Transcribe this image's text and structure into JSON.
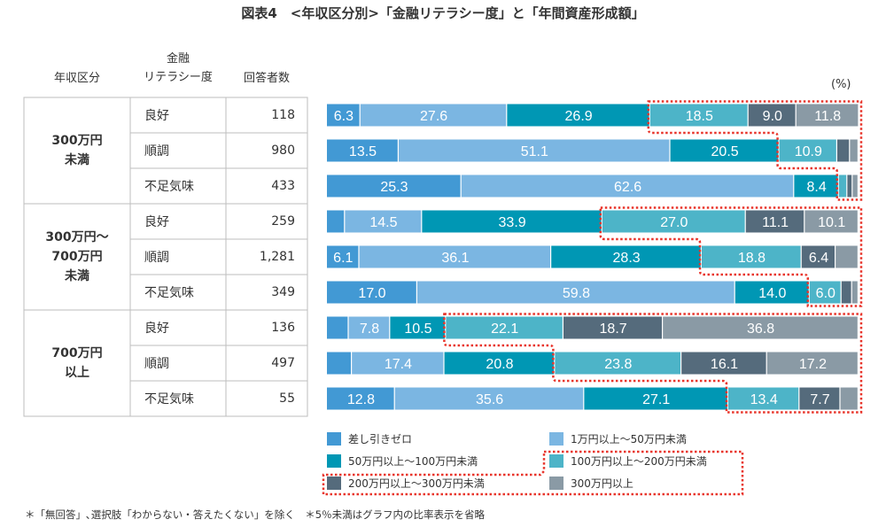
{
  "chart_data": {
    "type": "bar",
    "orientation": "horizontal",
    "stacked": true,
    "title": "図表4　<年収区分別>「金融リテラシー度」と「年間資産形成額」",
    "unit": "(%)",
    "xlim": [
      0,
      100
    ],
    "columns": {
      "group": "年収区分",
      "literacy": "金融\nリテラシー度",
      "count": "回答者数"
    },
    "groups": [
      {
        "label": "300万円\n未満",
        "rows": [
          0,
          1,
          2
        ]
      },
      {
        "label": "300万円〜\n700万円\n未満",
        "rows": [
          3,
          4,
          5
        ]
      },
      {
        "label": "700万円\n以上",
        "rows": [
          6,
          7,
          8
        ]
      }
    ],
    "rows": [
      {
        "literacy": "良好",
        "count": "118",
        "values": [
          6.3,
          27.6,
          26.9,
          18.5,
          9.0,
          11.8
        ]
      },
      {
        "literacy": "順調",
        "count": "980",
        "values": [
          13.5,
          51.1,
          20.5,
          10.9,
          2.4,
          1.6
        ]
      },
      {
        "literacy": "不足気味",
        "count": "433",
        "values": [
          25.3,
          62.6,
          8.4,
          1.6,
          1.0,
          1.1
        ]
      },
      {
        "literacy": "良好",
        "count": "259",
        "values": [
          3.4,
          14.5,
          33.9,
          27.0,
          11.1,
          10.1
        ]
      },
      {
        "literacy": "順調",
        "count": "1,281",
        "values": [
          6.1,
          36.1,
          28.3,
          18.8,
          6.4,
          4.3
        ]
      },
      {
        "literacy": "不足気味",
        "count": "349",
        "values": [
          17.0,
          59.8,
          14.0,
          6.0,
          2.0,
          1.2
        ]
      },
      {
        "literacy": "良好",
        "count": "136",
        "values": [
          4.1,
          7.8,
          10.5,
          22.1,
          18.7,
          36.8
        ]
      },
      {
        "literacy": "順調",
        "count": "497",
        "values": [
          4.7,
          17.4,
          20.8,
          23.8,
          16.1,
          17.2
        ]
      },
      {
        "literacy": "不足気味",
        "count": "55",
        "values": [
          12.8,
          35.6,
          27.1,
          13.4,
          7.7,
          3.4
        ]
      }
    ],
    "series": [
      {
        "name": "差し引きゼロ",
        "color": "#4299d4"
      },
      {
        "name": "1万円以上〜50万円未満",
        "color": "#7bb6e2"
      },
      {
        "name": "50万円以上〜100万円未満",
        "color": "#0097b4"
      },
      {
        "name": "100万円以上〜200万円未満",
        "color": "#4db4c8"
      },
      {
        "name": "200万円以上〜300万円未満",
        "color": "#556b7c"
      },
      {
        "name": "300万円以上",
        "color": "#8a9aa5"
      }
    ],
    "label_threshold": 5,
    "highlight": "100万円以上 (dotted red outline)",
    "highlight_color": "#e8342a",
    "legend_position": "bottom"
  },
  "footnote": "＊「無回答」､選択肢「わからない・答えたくない」を除く　＊5％未満はグラフ内の比率表示を省略"
}
